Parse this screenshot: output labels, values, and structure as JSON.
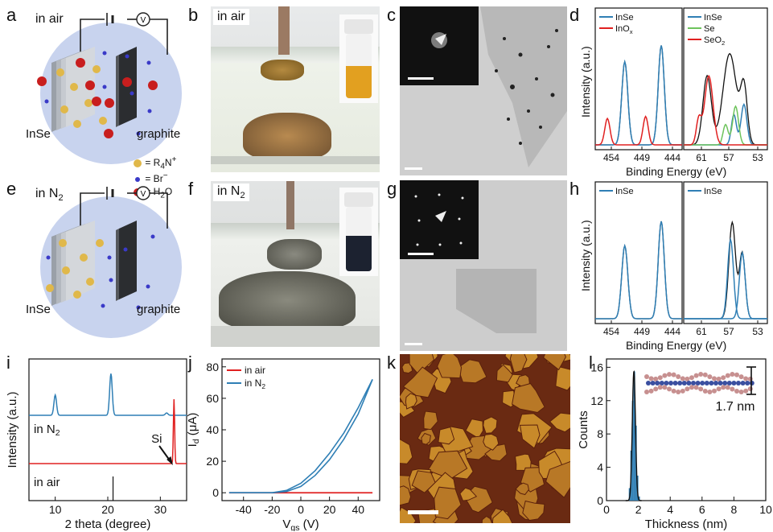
{
  "panel_labels": {
    "a": "a",
    "b": "b",
    "c": "c",
    "d": "d",
    "e": "e",
    "f": "f",
    "g": "g",
    "h": "h",
    "i": "i",
    "j": "j",
    "k": "k",
    "l": "l"
  },
  "schematic": {
    "air_label": "in air",
    "n2_label": "in N",
    "n2_sub": "2",
    "voltmeter": "V",
    "inse": "InSe",
    "graphite": "graphite",
    "legend": [
      {
        "symbol": "R4N+",
        "text": "= R",
        "sub": "4",
        "tail": "N",
        "sup": "+"
      },
      {
        "symbol": "Br-",
        "text": "= Br",
        "sup": "−"
      },
      {
        "symbol": "H2O",
        "text": "= H",
        "sub": "2",
        "tail": "O"
      }
    ]
  },
  "photos": {
    "b_label": "in air",
    "f_label": "in N",
    "f_label_sub": "2"
  },
  "xps": {
    "ylabel": "Intensity (a.u.)",
    "xlabel": "Binding Energy (eV)",
    "d_left_legend": [
      {
        "name": "InSe",
        "color": "#2f7fb5"
      },
      {
        "name": "InO",
        "sub": "x",
        "color": "#e02020"
      }
    ],
    "d_right_legend": [
      {
        "name": "InSe",
        "color": "#2f7fb5"
      },
      {
        "name": "Se",
        "color": "#6dc35c"
      },
      {
        "name": "SeO",
        "sub": "2",
        "color": "#e02020"
      }
    ],
    "h_left_legend": [
      {
        "name": "InSe",
        "color": "#2f7fb5"
      }
    ],
    "h_right_legend": [
      {
        "name": "InSe",
        "color": "#2f7fb5"
      }
    ],
    "left_ticks": [
      "454",
      "449",
      "444"
    ],
    "right_ticks": [
      "61",
      "57",
      "53"
    ]
  },
  "chart_data": [
    {
      "type": "line",
      "panel": "i",
      "xlabel": "2 theta (degree)",
      "ylabel": "Intensity (a.u.)",
      "xlim": [
        5,
        35
      ],
      "xticks": [
        10,
        20,
        30
      ],
      "series": [
        {
          "name": "in N2",
          "label": "in N",
          "label_sub": "2",
          "color": "#2f7fb5",
          "peaks": [
            [
              10,
              0.35
            ],
            [
              20.6,
              0.72
            ],
            [
              31.2,
              0.04
            ]
          ]
        },
        {
          "name": "in air",
          "label": "in air",
          "color": "#e02020",
          "peaks": [
            [
              32.6,
              1.0
            ]
          ]
        }
      ],
      "annotation": "Si"
    },
    {
      "type": "line",
      "panel": "j",
      "xlabel": "V",
      "xlabel_sub": "gs",
      "xlabel_unit": " (V)",
      "ylabel": "I",
      "ylabel_sub": "d",
      "ylabel_unit": " (μA)",
      "xlim": [
        -55,
        55
      ],
      "ylim": [
        -5,
        85
      ],
      "xticks": [
        -40,
        -20,
        0,
        20,
        40
      ],
      "yticks": [
        0,
        20,
        40,
        60,
        80
      ],
      "series": [
        {
          "name": "in air",
          "label": "in air",
          "color": "#e02020",
          "x": [
            -50,
            50
          ],
          "y": [
            0,
            0
          ]
        },
        {
          "name": "in N2",
          "label": "in N",
          "label_sub": "2",
          "color": "#2f7fb5",
          "x": [
            -50,
            -20,
            -10,
            0,
            10,
            20,
            30,
            40,
            50
          ],
          "y_up": [
            0,
            0,
            1.5,
            6,
            14,
            25,
            38,
            54,
            72
          ],
          "y_down": [
            0,
            0,
            0.8,
            4,
            11,
            21,
            34,
            50,
            72
          ]
        }
      ]
    },
    {
      "type": "bar",
      "panel": "l",
      "xlabel": "Thickness (nm)",
      "ylabel": "Counts",
      "xlim": [
        0,
        10
      ],
      "ylim": [
        0,
        17
      ],
      "xticks": [
        0,
        2,
        4,
        6,
        8,
        10
      ],
      "yticks": [
        0,
        4,
        8,
        12,
        16
      ],
      "bins": [
        1.4,
        1.5,
        1.6,
        1.7,
        1.8,
        1.9,
        2.0
      ],
      "values": [
        1.5,
        6,
        12,
        15.5,
        9,
        3,
        0.5
      ],
      "color": "#2f7fb5",
      "annotation": "1.7 nm"
    }
  ]
}
